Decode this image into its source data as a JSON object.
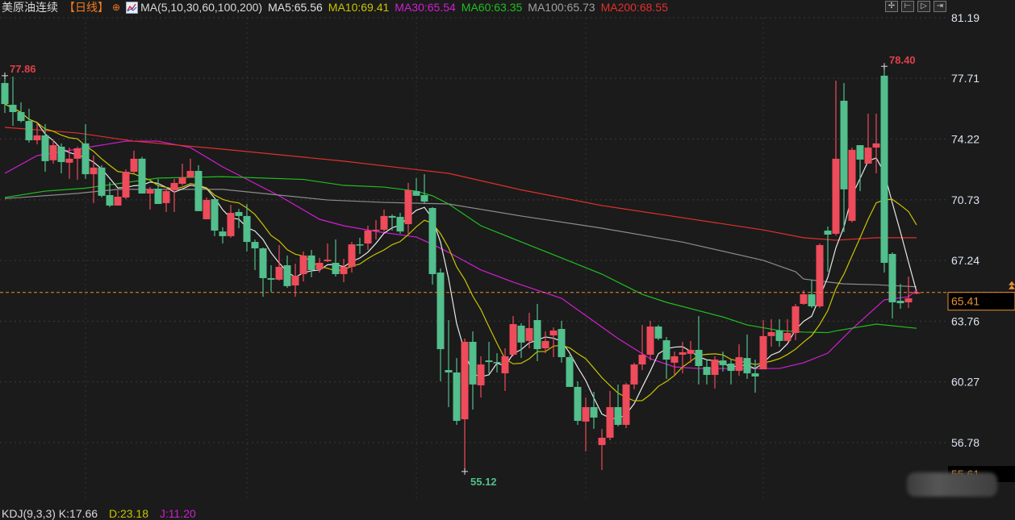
{
  "header": {
    "instrument": "美原油连续",
    "period": "【日线】",
    "period_icon": "circle-plus-icon",
    "indicator_icon": "line-chart-icon",
    "ma_params": "MA(5,10,30,60,100,200)",
    "ma5": "MA5:65.56",
    "ma10": "MA10:69.41",
    "ma30": "MA30:65.54",
    "ma60": "MA60:63.35",
    "ma100": "MA100:65.73",
    "ma200": "MA200:68.55"
  },
  "toolbar": [
    "crosshair-icon",
    "zoom-in-icon",
    "play-icon",
    "exit-icon"
  ],
  "kdj": {
    "label": "KDJ(9,3,3) K:17.66",
    "d": "D:23.18",
    "j": "J:11.20"
  },
  "colors": {
    "up": "#ee4b5b",
    "down": "#52bf8c",
    "ma5": "#e8e8e8",
    "ma10": "#c8c400",
    "ma30": "#d21ed2",
    "ma60": "#1fbf1f",
    "ma100": "#8c8c8c",
    "ma200": "#e0302c",
    "current": "#e8922e",
    "background": "#1b1b1b"
  },
  "chart_data": {
    "type": "candlestick",
    "y_ticks": [
      "81.19",
      "77.71",
      "74.22",
      "70.73",
      "67.24",
      "63.76",
      "60.27",
      "56.78"
    ],
    "ylim": [
      54.7,
      81.19
    ],
    "grid": true,
    "current_price": "65.41",
    "bottom_price": "55.61",
    "max_label": "78.40",
    "left_max_label": "77.86",
    "min_label": "55.12",
    "ohlc": [
      [
        77.44,
        77.86,
        75.72,
        76.23
      ],
      [
        76.19,
        77.81,
        74.98,
        75.77
      ],
      [
        75.77,
        76.33,
        75.17,
        75.26
      ],
      [
        75.26,
        75.96,
        74.01,
        74.15
      ],
      [
        74.15,
        75.12,
        73.92,
        74.43
      ],
      [
        74.43,
        75.08,
        72.34,
        72.95
      ],
      [
        73.0,
        74.15,
        72.81,
        73.87
      ],
      [
        73.78,
        73.97,
        72.25,
        72.9
      ],
      [
        72.86,
        73.73,
        71.93,
        73.09
      ],
      [
        73.09,
        73.78,
        71.88,
        73.69
      ],
      [
        73.97,
        75.08,
        71.93,
        72.2
      ],
      [
        72.2,
        73.27,
        70.54,
        72.58
      ],
      [
        72.58,
        72.72,
        70.86,
        70.96
      ],
      [
        71.0,
        71.74,
        70.31,
        70.4
      ],
      [
        70.4,
        71.28,
        70.4,
        70.91
      ],
      [
        70.86,
        72.48,
        70.77,
        72.34
      ],
      [
        72.34,
        73.55,
        72.25,
        73.09
      ],
      [
        73.09,
        73.2,
        71.09,
        71.09
      ],
      [
        71.09,
        71.47,
        70.17,
        71.33
      ],
      [
        71.37,
        71.93,
        70.49,
        70.49
      ],
      [
        70.54,
        71.33,
        70.03,
        71.23
      ],
      [
        71.28,
        71.93,
        70.03,
        71.7
      ],
      [
        71.65,
        72.81,
        71.56,
        72.02
      ],
      [
        72.02,
        73.09,
        72.02,
        72.39
      ],
      [
        72.39,
        72.72,
        70.08,
        70.08
      ],
      [
        69.61,
        70.86,
        69.61,
        70.72
      ],
      [
        70.77,
        70.77,
        68.64,
        68.96
      ],
      [
        68.91,
        69.15,
        68.22,
        68.64
      ],
      [
        68.64,
        70.44,
        68.55,
        69.98
      ],
      [
        70.03,
        70.21,
        69.1,
        69.8
      ],
      [
        69.8,
        70.49,
        67.76,
        68.31
      ],
      [
        68.31,
        68.45,
        66.69,
        67.94
      ],
      [
        67.94,
        67.99,
        65.16,
        66.23
      ],
      [
        66.23,
        66.97,
        65.44,
        66.14
      ],
      [
        66.14,
        68.13,
        66.09,
        66.88
      ],
      [
        66.97,
        67.53,
        65.67,
        65.77
      ],
      [
        65.81,
        67.06,
        65.16,
        66.37
      ],
      [
        66.46,
        67.76,
        66.04,
        67.53
      ],
      [
        67.53,
        67.85,
        66.28,
        66.69
      ],
      [
        66.74,
        67.39,
        66.55,
        67.11
      ],
      [
        67.2,
        68.22,
        67.16,
        67.29
      ],
      [
        67.11,
        68.45,
        66.32,
        66.46
      ],
      [
        66.46,
        67.34,
        66.0,
        66.88
      ],
      [
        66.88,
        68.31,
        66.55,
        68.17
      ],
      [
        68.17,
        68.55,
        67.62,
        68.13
      ],
      [
        68.22,
        69.24,
        67.85,
        68.96
      ],
      [
        68.96,
        69.56,
        68.45,
        69.01
      ],
      [
        69.01,
        70.17,
        68.91,
        69.8
      ],
      [
        69.8,
        69.89,
        68.96,
        69.7
      ],
      [
        69.75,
        69.98,
        68.78,
        68.91
      ],
      [
        69.33,
        71.7,
        68.78,
        71.28
      ],
      [
        71.23,
        71.98,
        70.96,
        70.96
      ],
      [
        71.0,
        72.2,
        70.49,
        70.63
      ],
      [
        70.26,
        70.31,
        65.86,
        66.46
      ],
      [
        66.55,
        66.79,
        60.3,
        62.15
      ],
      [
        60.95,
        63.82,
        58.82,
        60.81
      ],
      [
        60.81,
        61.64,
        57.8,
        58.03
      ],
      [
        58.12,
        62.76,
        55.12,
        62.57
      ],
      [
        62.57,
        63.17,
        58.68,
        60.12
      ],
      [
        60.07,
        61.74,
        59.37,
        61.27
      ],
      [
        61.5,
        62.57,
        60.76,
        61.41
      ],
      [
        61.41,
        61.92,
        60.81,
        61.37
      ],
      [
        60.76,
        62.2,
        59.75,
        61.74
      ],
      [
        61.83,
        64.05,
        61.74,
        63.59
      ],
      [
        63.5,
        63.64,
        61.64,
        62.53
      ],
      [
        62.62,
        64.24,
        62.2,
        63.36
      ],
      [
        63.82,
        64.75,
        61.46,
        62.15
      ],
      [
        62.2,
        63.17,
        61.92,
        62.62
      ],
      [
        62.94,
        63.4,
        61.69,
        63.22
      ],
      [
        63.31,
        63.78,
        61.37,
        61.69
      ],
      [
        61.69,
        61.8,
        59.98,
        59.98
      ],
      [
        59.98,
        60.3,
        57.8,
        58.03
      ],
      [
        57.99,
        59.37,
        56.27,
        58.82
      ],
      [
        58.82,
        59.7,
        57.57,
        58.22
      ],
      [
        56.64,
        57.57,
        55.21,
        57.06
      ],
      [
        57.06,
        59.75,
        56.92,
        58.82
      ],
      [
        58.82,
        60.12,
        57.71,
        57.8
      ],
      [
        57.8,
        60.21,
        57.61,
        60.12
      ],
      [
        60.12,
        61.37,
        59.84,
        61.27
      ],
      [
        61.27,
        63.54,
        60.95,
        61.83
      ],
      [
        61.83,
        63.78,
        61.5,
        63.45
      ],
      [
        63.45,
        63.54,
        62.66,
        62.76
      ],
      [
        62.66,
        62.85,
        60.44,
        61.55
      ],
      [
        61.37,
        62.01,
        60.67,
        61.74
      ],
      [
        61.83,
        62.57,
        60.76,
        61.97
      ],
      [
        61.88,
        62.62,
        61.37,
        62.11
      ],
      [
        62.11,
        64.05,
        60.12,
        61.18
      ],
      [
        61.13,
        61.55,
        60.12,
        60.67
      ],
      [
        60.67,
        61.74,
        59.89,
        61.55
      ],
      [
        61.5,
        62.01,
        60.86,
        61.23
      ],
      [
        61.32,
        61.6,
        60.12,
        60.9
      ],
      [
        60.9,
        62.43,
        60.62,
        61.69
      ],
      [
        61.64,
        62.99,
        60.44,
        60.76
      ],
      [
        60.76,
        61.55,
        59.65,
        60.58
      ],
      [
        60.99,
        63.82,
        60.99,
        62.9
      ],
      [
        62.9,
        63.87,
        62.29,
        63.13
      ],
      [
        63.22,
        63.87,
        62.29,
        62.62
      ],
      [
        62.62,
        63.87,
        62.62,
        63.08
      ],
      [
        63.08,
        64.75,
        62.66,
        64.61
      ],
      [
        64.75,
        65.53,
        64.7,
        65.3
      ],
      [
        65.3,
        66.14,
        64.52,
        64.61
      ],
      [
        64.61,
        68.22,
        64.52,
        68.13
      ],
      [
        68.96,
        69.19,
        66.6,
        68.73
      ],
      [
        68.78,
        77.58,
        68.68,
        73.09
      ],
      [
        76.42,
        77.44,
        68.87,
        71.33
      ],
      [
        69.52,
        73.73,
        69.43,
        73.6
      ],
      [
        73.87,
        73.87,
        71.23,
        73.04
      ],
      [
        72.81,
        75.68,
        72.81,
        73.73
      ],
      [
        73.73,
        75.68,
        72.25,
        73.97
      ],
      [
        77.86,
        78.4,
        66.55,
        67.11
      ],
      [
        67.62,
        67.71,
        63.91,
        64.84
      ],
      [
        64.93,
        65.9,
        64.47,
        64.79
      ],
      [
        64.84,
        66.32,
        64.52,
        65.07
      ],
      [
        65.35,
        65.6,
        65.3,
        65.41
      ]
    ],
    "ma_computed": [
      {
        "name": "MA5",
        "period": 5
      },
      {
        "name": "MA10",
        "period": 10
      }
    ],
    "ma_series": [
      {
        "name": "MA30",
        "points": [
          [
            0,
            72.25
          ],
          [
            4,
            73.27
          ],
          [
            15,
            74.1
          ],
          [
            19,
            74.1
          ],
          [
            23,
            73.73
          ],
          [
            27,
            72.62
          ],
          [
            34,
            70.96
          ],
          [
            39,
            69.61
          ],
          [
            42,
            69.24
          ],
          [
            46,
            68.91
          ],
          [
            51,
            68.59
          ],
          [
            53,
            68.17
          ],
          [
            55,
            67.71
          ],
          [
            59,
            66.7
          ],
          [
            63,
            66.0
          ],
          [
            69,
            65.07
          ],
          [
            76,
            62.76
          ],
          [
            80,
            61.6
          ],
          [
            83,
            61.13
          ],
          [
            86,
            61.04
          ],
          [
            96,
            61.04
          ],
          [
            99,
            61.37
          ],
          [
            102,
            61.92
          ],
          [
            105,
            63.31
          ],
          [
            109,
            64.98
          ],
          [
            112,
            65.16
          ],
          [
            113,
            65.54
          ]
        ]
      },
      {
        "name": "MA60",
        "points": [
          [
            0,
            70.86
          ],
          [
            5,
            71.23
          ],
          [
            10,
            71.4
          ],
          [
            19,
            71.98
          ],
          [
            27,
            72.06
          ],
          [
            37,
            71.9
          ],
          [
            42,
            71.56
          ],
          [
            47,
            71.46
          ],
          [
            51,
            71.23
          ],
          [
            53,
            70.96
          ],
          [
            55,
            70.49
          ],
          [
            59,
            69.24
          ],
          [
            64,
            68.31
          ],
          [
            69,
            67.39
          ],
          [
            74,
            66.46
          ],
          [
            79,
            65.3
          ],
          [
            82,
            64.84
          ],
          [
            89,
            64.0
          ],
          [
            92,
            63.54
          ],
          [
            96,
            63.22
          ],
          [
            99,
            63.13
          ],
          [
            102,
            63.1
          ],
          [
            103,
            63.2
          ],
          [
            108,
            63.59
          ],
          [
            113,
            63.35
          ]
        ]
      },
      {
        "name": "MA100",
        "points": [
          [
            0,
            70.8
          ],
          [
            9,
            71.1
          ],
          [
            14,
            71.33
          ],
          [
            27,
            71.33
          ],
          [
            34,
            71.0
          ],
          [
            40,
            70.72
          ],
          [
            47,
            70.58
          ],
          [
            55,
            70.49
          ],
          [
            64,
            69.8
          ],
          [
            74,
            69.1
          ],
          [
            84,
            68.3
          ],
          [
            94,
            67.25
          ],
          [
            98,
            66.6
          ],
          [
            99,
            66.18
          ],
          [
            104,
            65.9
          ],
          [
            108,
            65.85
          ],
          [
            113,
            65.73
          ]
        ]
      },
      {
        "name": "MA200",
        "points": [
          [
            0,
            74.89
          ],
          [
            9,
            74.57
          ],
          [
            16,
            74.1
          ],
          [
            27,
            73.64
          ],
          [
            42,
            72.95
          ],
          [
            55,
            72.25
          ],
          [
            64,
            71.3
          ],
          [
            74,
            70.4
          ],
          [
            84,
            69.7
          ],
          [
            94,
            69.0
          ],
          [
            99,
            68.55
          ],
          [
            103,
            68.41
          ],
          [
            108,
            68.55
          ],
          [
            113,
            68.55
          ]
        ]
      }
    ]
  }
}
